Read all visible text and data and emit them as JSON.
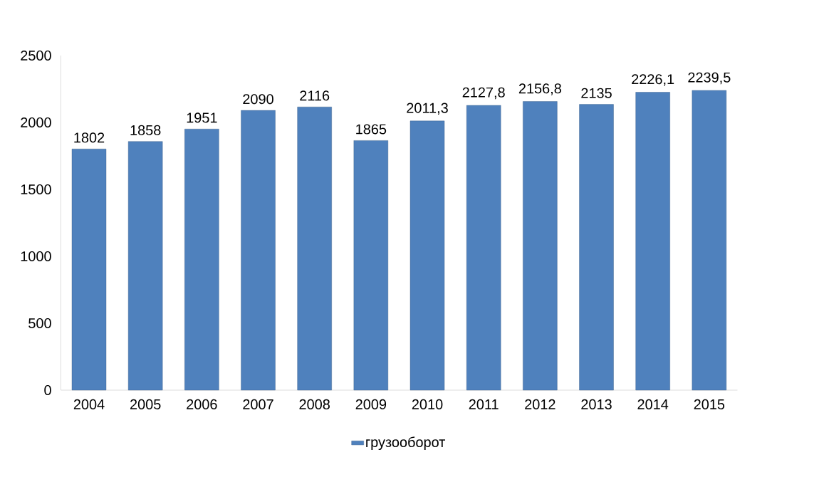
{
  "chart_data": {
    "type": "bar",
    "categories": [
      "2004",
      "2005",
      "2006",
      "2007",
      "2008",
      "2009",
      "2010",
      "2011",
      "2012",
      "2013",
      "2014",
      "2015"
    ],
    "series": [
      {
        "name": "грузооборот",
        "color": "#4f81bd",
        "values": [
          1802,
          1858,
          1951,
          2090,
          2116,
          1865,
          2011.3,
          2127.8,
          2156.8,
          2135,
          2226.1,
          2239.5
        ],
        "value_labels": [
          "1802",
          "1858",
          "1951",
          "2090",
          "2116",
          "1865",
          "2011,3",
          "2127,8",
          "2156,8",
          "2135",
          "2226,1",
          "2239,5"
        ]
      }
    ],
    "ylim": [
      0,
      2500
    ],
    "yticks": [
      0,
      500,
      1000,
      1500,
      2000,
      2500
    ],
    "legend": "bottom",
    "grid": false
  }
}
